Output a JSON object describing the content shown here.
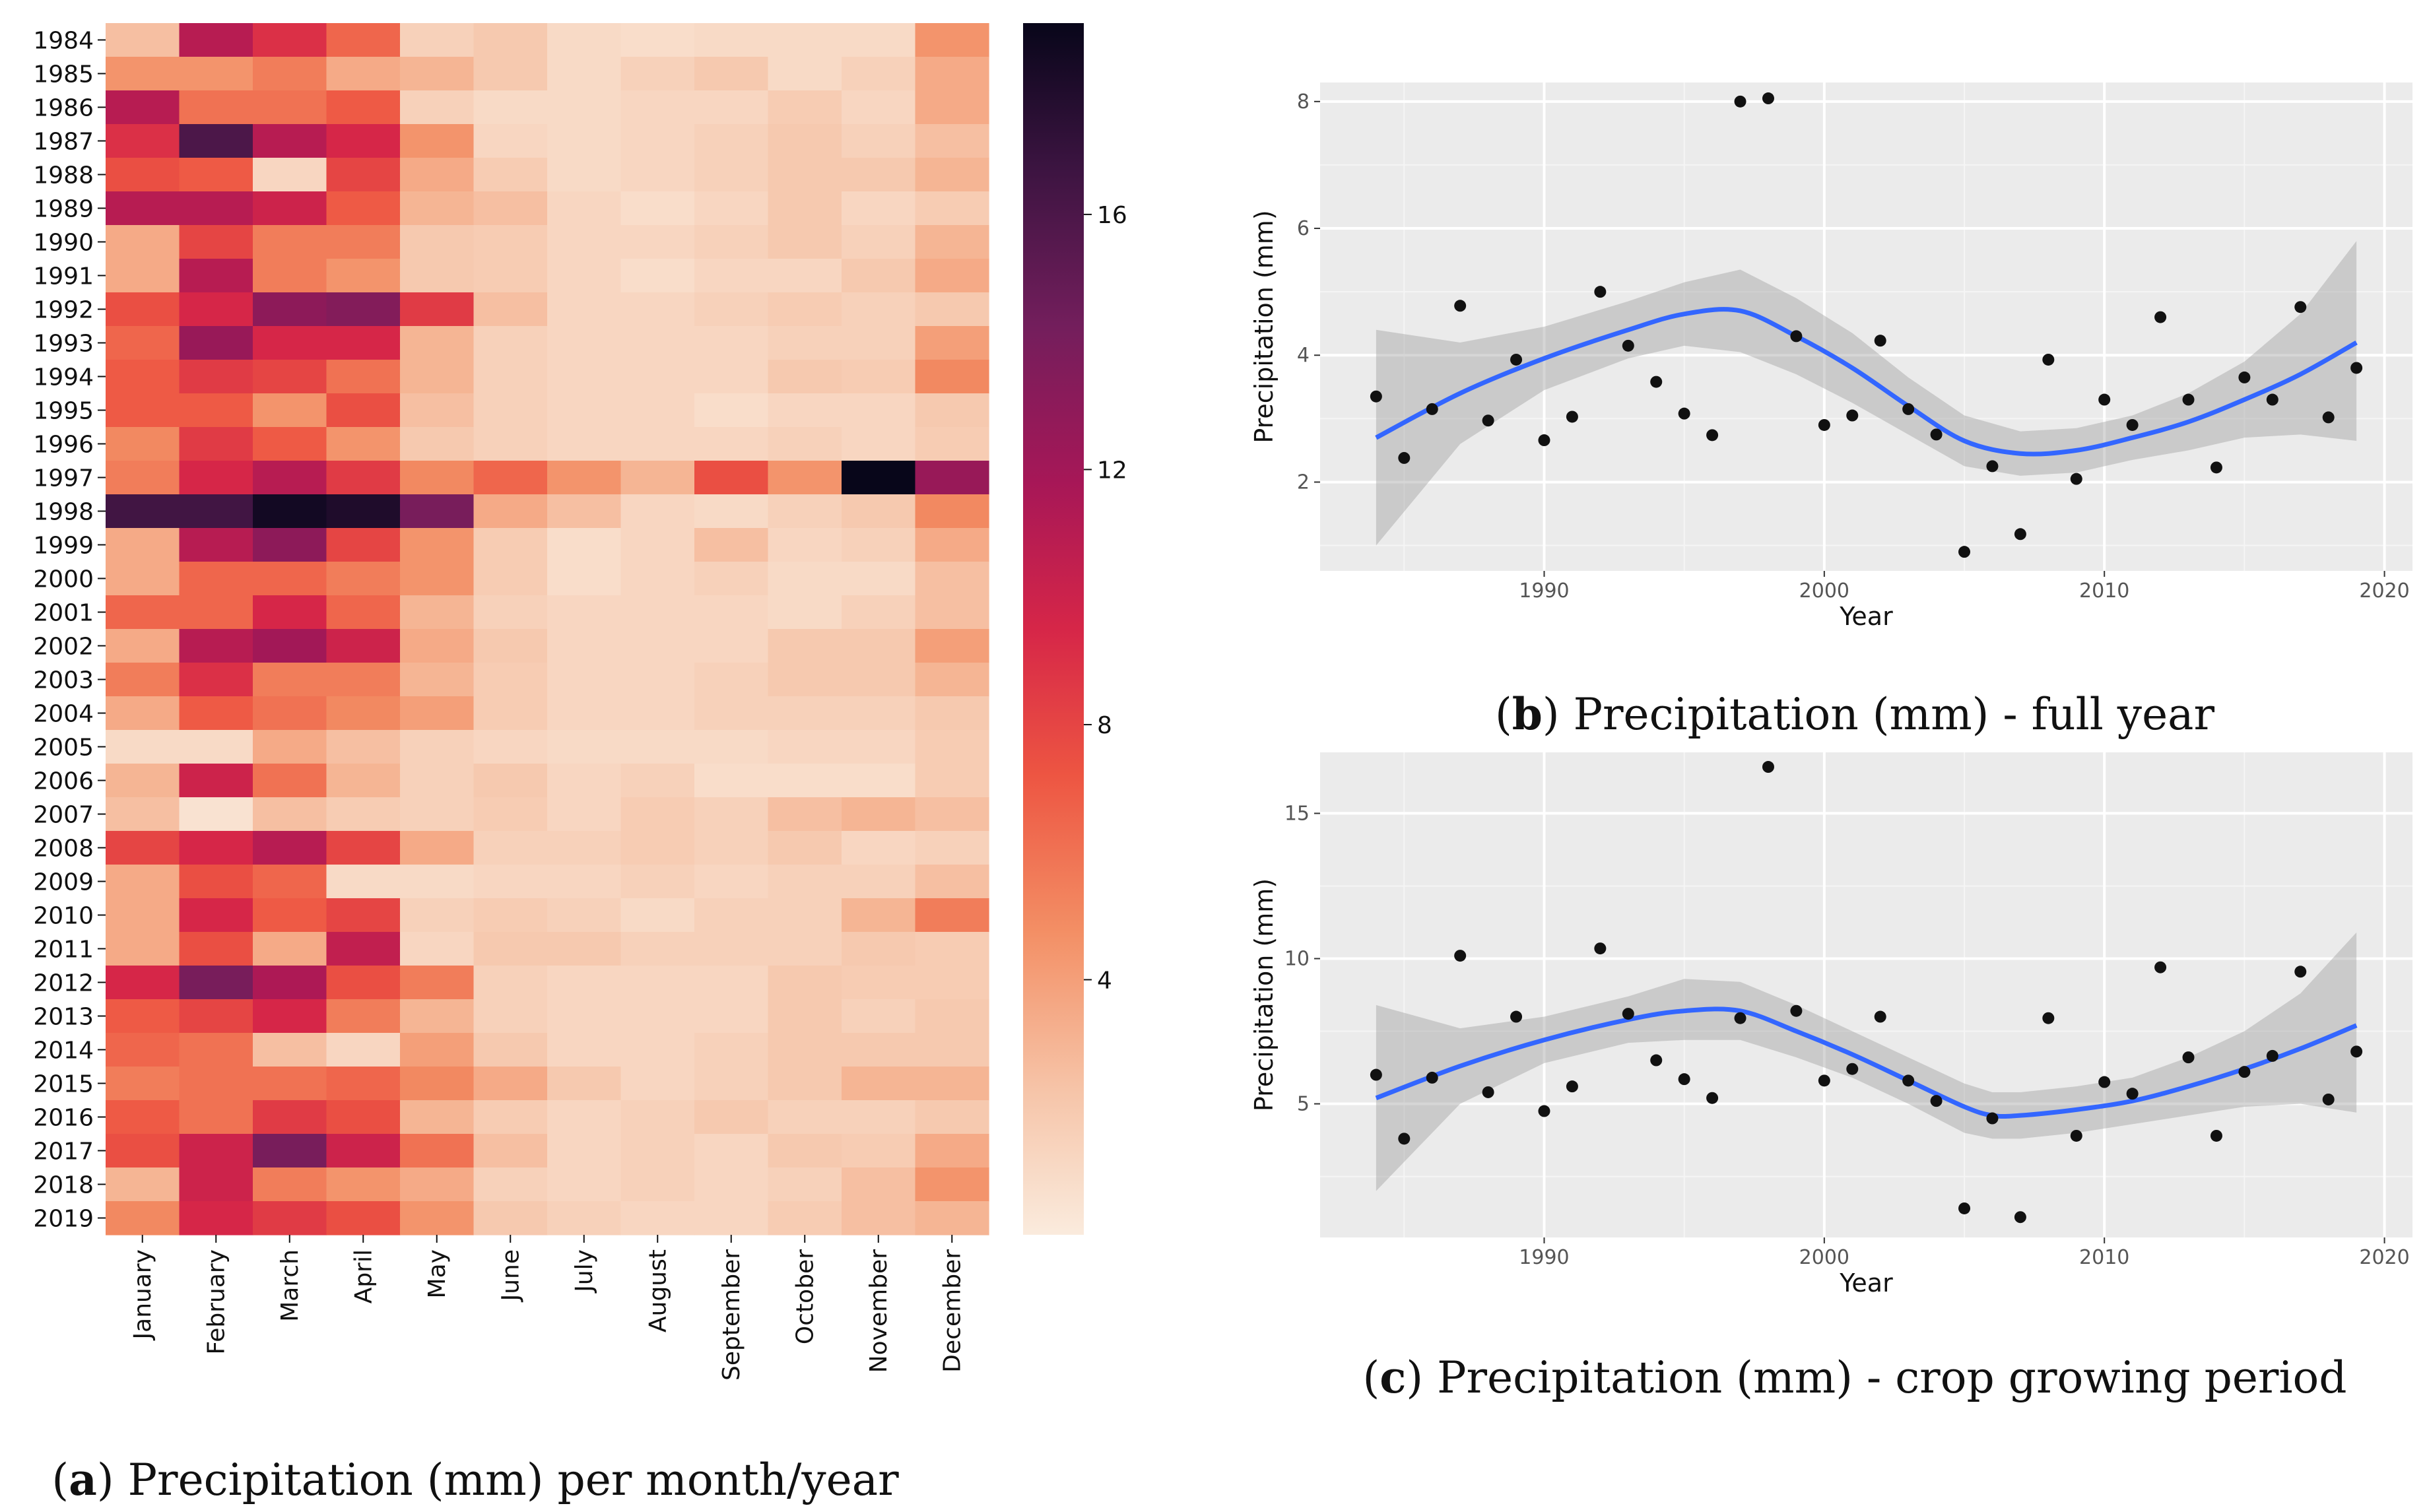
{
  "chart_data": [
    {
      "id": "a",
      "type": "heatmap",
      "caption_label": "a",
      "caption_text": "Precipitation (mm) per month/year",
      "title": "Precipitation (mm) per month/year",
      "row_labels": [
        "1984",
        "1985",
        "1986",
        "1987",
        "1988",
        "1989",
        "1990",
        "1991",
        "1992",
        "1993",
        "1994",
        "1995",
        "1996",
        "1997",
        "1998",
        "1999",
        "2000",
        "2001",
        "2002",
        "2003",
        "2004",
        "2005",
        "2006",
        "2007",
        "2008",
        "2009",
        "2010",
        "2011",
        "2012",
        "2013",
        "2014",
        "2015",
        "2016",
        "2017",
        "2018",
        "2019"
      ],
      "col_labels": [
        "January",
        "February",
        "March",
        "April",
        "May",
        "June",
        "July",
        "August",
        "September",
        "October",
        "November",
        "December"
      ],
      "values": [
        [
          2.5,
          11,
          9,
          6.5,
          1.5,
          2,
          1,
          0.8,
          1,
          1,
          1,
          4.5
        ],
        [
          4.5,
          4.5,
          5.5,
          3.5,
          3,
          2,
          1,
          1.5,
          2,
          1,
          1.5,
          3.5
        ],
        [
          11,
          6,
          6,
          7,
          1.5,
          1,
          1,
          1.2,
          1.2,
          1.8,
          1.2,
          3.5
        ],
        [
          9,
          16,
          11,
          9.5,
          4.5,
          1.2,
          1,
          1.2,
          1.5,
          2,
          1.5,
          2.5
        ],
        [
          7.5,
          7,
          1.2,
          8,
          3.5,
          1.8,
          1,
          1.2,
          1.5,
          2,
          2,
          3
        ],
        [
          11,
          11,
          10,
          7,
          3,
          2.5,
          1.2,
          0.8,
          1.2,
          2,
          1.2,
          1.8
        ],
        [
          3.5,
          8,
          5.5,
          5.5,
          2,
          1.8,
          1.2,
          1.2,
          1.5,
          2,
          1.5,
          3
        ],
        [
          3.5,
          11,
          5.5,
          4.5,
          2,
          1.8,
          1.2,
          0.8,
          1.2,
          1.2,
          2,
          3.5
        ],
        [
          7.5,
          9.5,
          13,
          13.5,
          8.5,
          2.5,
          1.2,
          1.2,
          1.5,
          1.8,
          1.5,
          2
        ],
        [
          6.5,
          12.5,
          9.5,
          9.5,
          3,
          1.5,
          1.2,
          1.2,
          1.2,
          1.5,
          1.5,
          4
        ],
        [
          7,
          8.5,
          8,
          6,
          3,
          1.5,
          1.2,
          1.2,
          1.2,
          2,
          1.8,
          5
        ],
        [
          7,
          7,
          4.5,
          7.5,
          2.5,
          1.5,
          1.2,
          1.2,
          0.8,
          1.2,
          1.2,
          2
        ],
        [
          5,
          8.5,
          7,
          4.5,
          2,
          1.5,
          1.2,
          1.2,
          1.2,
          1.5,
          1.2,
          1.8
        ],
        [
          5.5,
          9.5,
          11,
          8.5,
          5,
          6.5,
          4.5,
          3,
          7.5,
          4.5,
          19,
          12.5
        ],
        [
          16.5,
          16.5,
          18.5,
          18,
          14,
          3.5,
          2.5,
          1.2,
          1,
          1.5,
          2,
          5
        ],
        [
          3.5,
          11,
          13,
          8,
          4.5,
          1.8,
          0.8,
          1.2,
          2.5,
          1.2,
          1.5,
          3.5
        ],
        [
          3.5,
          6.5,
          6.5,
          5.5,
          4.5,
          1.8,
          0.8,
          1.2,
          1.5,
          1,
          1,
          2.5
        ],
        [
          6.5,
          6.5,
          9.5,
          6.5,
          3,
          1.5,
          1.2,
          1.2,
          1.2,
          1,
          1.5,
          2.5
        ],
        [
          3.5,
          11,
          12,
          10,
          3.5,
          2,
          1.2,
          1.2,
          1.2,
          2,
          2,
          4
        ],
        [
          5.5,
          9,
          5.5,
          5.5,
          3,
          1.8,
          1.2,
          1.2,
          1.5,
          2,
          2,
          3
        ],
        [
          3.5,
          7,
          6,
          5,
          4,
          1.8,
          1.2,
          1.2,
          1.5,
          1.5,
          1.5,
          2
        ],
        [
          1,
          1,
          3.5,
          2.5,
          1.5,
          1.2,
          1,
          1,
          1,
          1.2,
          1.2,
          1.8
        ],
        [
          3,
          10,
          6,
          3,
          1.5,
          2,
          1.2,
          1.5,
          0.8,
          0.8,
          0.8,
          1.8
        ],
        [
          2.5,
          0.5,
          2.5,
          1.8,
          1.5,
          1.8,
          1.2,
          1.8,
          1.5,
          2.5,
          3,
          2.5
        ],
        [
          8,
          9.5,
          11,
          8,
          3.5,
          1.5,
          1.5,
          1.8,
          1.5,
          2,
          1.2,
          1.5
        ],
        [
          3.5,
          7.5,
          6.5,
          1,
          1,
          1.2,
          1.2,
          1.5,
          1.2,
          1.5,
          1.5,
          2.5
        ],
        [
          3.5,
          9.5,
          7,
          8,
          1.5,
          1.8,
          1.5,
          1,
          1.5,
          1.5,
          3,
          5.5
        ],
        [
          3.5,
          7.5,
          3.5,
          10.5,
          1.2,
          2,
          2,
          1.5,
          1.5,
          1.5,
          2,
          1.8
        ],
        [
          9.5,
          14,
          11.5,
          7.5,
          5.5,
          1.5,
          1.2,
          1.2,
          1.2,
          2,
          1.8,
          1.8
        ],
        [
          7,
          8,
          9.5,
          5.5,
          3,
          1.5,
          1.2,
          1.2,
          1.2,
          2,
          1.5,
          2
        ],
        [
          6.5,
          6,
          2.5,
          1.2,
          4,
          2,
          1.2,
          1.2,
          1.5,
          2,
          2,
          2
        ],
        [
          5.5,
          6,
          6,
          6.5,
          5,
          3.5,
          2,
          1.2,
          1.5,
          2,
          3,
          3
        ],
        [
          7,
          6,
          8.5,
          7.5,
          3,
          1.8,
          1.2,
          1.5,
          2,
          1.5,
          1.5,
          2
        ],
        [
          7.5,
          10,
          14,
          10,
          6,
          2.5,
          1.2,
          1.5,
          1.2,
          2,
          1.8,
          3.5
        ],
        [
          3,
          10,
          5.5,
          4.5,
          3.5,
          1.5,
          1.2,
          1.5,
          1.2,
          1.5,
          2.5,
          4.5
        ],
        [
          5,
          9.5,
          8.5,
          7.5,
          4.5,
          2,
          1.5,
          1.2,
          1.2,
          1.8,
          2.5,
          3
        ]
      ],
      "colorbar": {
        "min": 0,
        "max": 19,
        "ticks": [
          4,
          8,
          12,
          16
        ]
      }
    },
    {
      "id": "b",
      "type": "scatter",
      "caption_label": "b",
      "caption_text": "Precipitation (mm) - full year",
      "title": "Precipitation (mm) - full year",
      "xlabel": "Year",
      "ylabel": "Precipitation (mm)",
      "xlim": [
        1982,
        2021
      ],
      "ylim": [
        0.6,
        8.3
      ],
      "xticks": [
        1990,
        2000,
        2010,
        2020
      ],
      "yticks": [
        2,
        4,
        6,
        8
      ],
      "x": [
        1984,
        1985,
        1986,
        1987,
        1988,
        1989,
        1990,
        1991,
        1992,
        1993,
        1994,
        1995,
        1996,
        1997,
        1998,
        1999,
        2000,
        2001,
        2002,
        2003,
        2004,
        2005,
        2006,
        2007,
        2008,
        2009,
        2010,
        2011,
        2012,
        2013,
        2014,
        2015,
        2016,
        2017,
        2018,
        2019
      ],
      "y": [
        3.35,
        2.38,
        3.15,
        4.78,
        2.97,
        3.93,
        2.66,
        3.03,
        5.0,
        4.15,
        3.58,
        3.08,
        2.74,
        8.0,
        8.05,
        4.3,
        2.9,
        3.05,
        4.23,
        3.15,
        2.75,
        0.9,
        2.25,
        1.18,
        3.93,
        2.05,
        3.3,
        2.9,
        4.6,
        3.3,
        2.23,
        3.65,
        3.3,
        4.76,
        3.02,
        3.8
      ],
      "smooth": {
        "x": [
          1984,
          1987,
          1990,
          1993,
          1995,
          1997,
          1999,
          2001,
          2003,
          2005,
          2007,
          2009,
          2011,
          2013,
          2015,
          2017,
          2019
        ],
        "y": [
          2.7,
          3.4,
          3.95,
          4.4,
          4.65,
          4.7,
          4.3,
          3.8,
          3.2,
          2.65,
          2.45,
          2.5,
          2.7,
          2.95,
          3.3,
          3.7,
          4.2
        ],
        "lower": [
          1.0,
          2.6,
          3.45,
          3.95,
          4.15,
          4.05,
          3.7,
          3.25,
          2.75,
          2.25,
          2.1,
          2.15,
          2.35,
          2.5,
          2.7,
          2.75,
          2.65
        ],
        "upper": [
          4.4,
          4.2,
          4.45,
          4.85,
          5.15,
          5.35,
          4.9,
          4.35,
          3.65,
          3.05,
          2.8,
          2.85,
          3.05,
          3.4,
          3.9,
          4.65,
          5.8
        ]
      }
    },
    {
      "id": "c",
      "type": "scatter",
      "caption_label": "c",
      "caption_text": "Precipitation (mm) - crop growing period",
      "title": "Precipitation (mm) - crop growing period",
      "xlabel": "Year",
      "ylabel": "Precipitation (mm)",
      "xlim": [
        1982,
        2021
      ],
      "ylim": [
        0.4,
        17.1
      ],
      "xticks": [
        1990,
        2000,
        2010,
        2020
      ],
      "yticks": [
        5,
        10,
        15
      ],
      "x": [
        1984,
        1985,
        1986,
        1987,
        1988,
        1989,
        1990,
        1991,
        1992,
        1993,
        1994,
        1995,
        1996,
        1997,
        1998,
        1999,
        2000,
        2001,
        2002,
        2003,
        2004,
        2005,
        2006,
        2007,
        2008,
        2009,
        2010,
        2011,
        2012,
        2013,
        2014,
        2015,
        2016,
        2017,
        2018,
        2019
      ],
      "y": [
        6.0,
        3.8,
        5.9,
        10.1,
        5.4,
        8.0,
        4.75,
        5.6,
        10.35,
        8.1,
        6.5,
        5.85,
        5.2,
        7.95,
        16.6,
        8.2,
        5.8,
        6.2,
        8.0,
        5.8,
        5.1,
        1.4,
        4.5,
        1.1,
        7.95,
        3.9,
        5.75,
        5.35,
        9.7,
        6.6,
        3.9,
        6.1,
        6.65,
        9.55,
        5.15,
        6.8
      ],
      "smooth": {
        "x": [
          1984,
          1987,
          1990,
          1993,
          1995,
          1997,
          1999,
          2001,
          2003,
          2005,
          2006,
          2007,
          2009,
          2011,
          2013,
          2015,
          2017,
          2019
        ],
        "y": [
          5.2,
          6.3,
          7.2,
          7.9,
          8.2,
          8.2,
          7.5,
          6.7,
          5.8,
          4.9,
          4.6,
          4.6,
          4.8,
          5.1,
          5.6,
          6.2,
          6.9,
          7.7
        ],
        "lower": [
          2.0,
          5.0,
          6.4,
          7.1,
          7.2,
          7.2,
          6.6,
          5.9,
          5.0,
          4.0,
          3.8,
          3.8,
          4.0,
          4.3,
          4.6,
          4.9,
          5.0,
          4.7
        ],
        "upper": [
          8.4,
          7.6,
          8.0,
          8.7,
          9.3,
          9.2,
          8.4,
          7.5,
          6.6,
          5.7,
          5.4,
          5.4,
          5.6,
          5.9,
          6.6,
          7.5,
          8.8,
          10.9
        ]
      }
    }
  ]
}
